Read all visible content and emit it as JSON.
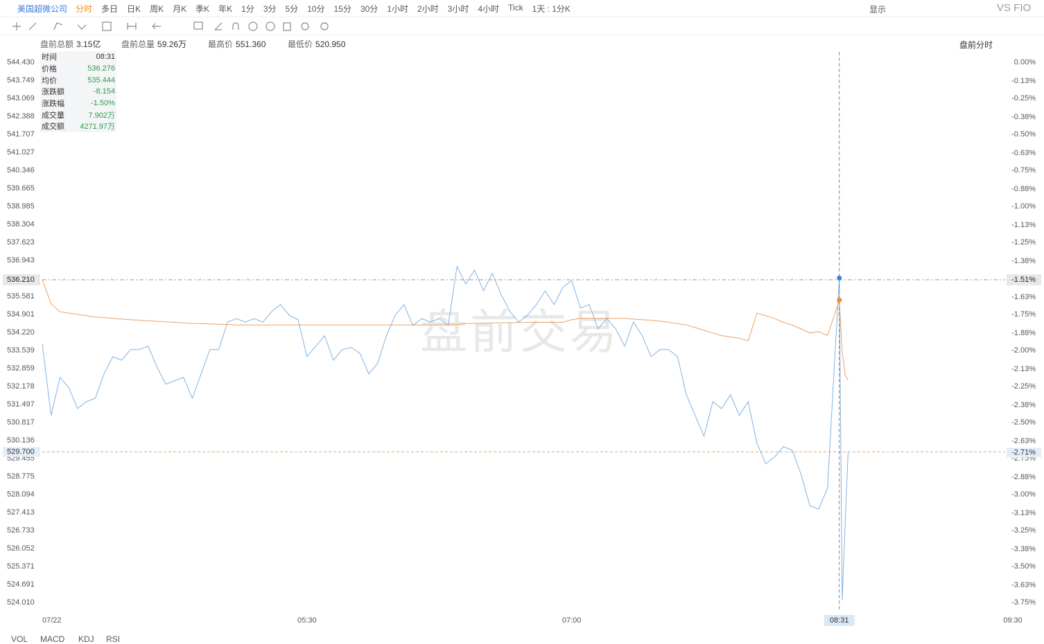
{
  "toolbar": {
    "symbol": "美国超微公司",
    "periods": [
      "分时",
      "多日",
      "日K",
      "周K",
      "月K",
      "季K",
      "年K",
      "1分",
      "3分",
      "5分",
      "10分",
      "15分",
      "30分",
      "1小时",
      "2小时",
      "3小时",
      "4小时",
      "Tick",
      "1天 : 1分K"
    ],
    "display": "显示",
    "compare": "VS FIO"
  },
  "stats": [
    {
      "label": "盘前总额",
      "value": "3.15亿"
    },
    {
      "label": "盘前总量",
      "value": "59.26万"
    },
    {
      "label": "最高价",
      "value": "551.360"
    },
    {
      "label": "最低价",
      "value": "520.950"
    }
  ],
  "mode": "盘前分时",
  "info": {
    "rows": [
      [
        "时间",
        "08:31"
      ],
      [
        "价格",
        "536.276"
      ],
      [
        "均价",
        "535.444"
      ],
      [
        "涨跌额",
        "-8.154"
      ],
      [
        "涨跌幅",
        "-1.50%"
      ],
      [
        "成交量",
        "7.902万"
      ],
      [
        "成交额",
        "4271.97万"
      ]
    ]
  },
  "watermark": "盘前交易",
  "indicators": [
    "VOL",
    "MACD",
    "KDJ",
    "RSI"
  ],
  "chart_data": {
    "type": "line",
    "x": [
      "04:00",
      "04:03",
      "04:06",
      "04:09",
      "04:12",
      "04:15",
      "04:18",
      "04:21",
      "04:24",
      "04:27",
      "04:30",
      "04:33",
      "04:36",
      "04:39",
      "04:42",
      "04:45",
      "04:48",
      "04:51",
      "04:54",
      "04:57",
      "05:00",
      "05:03",
      "05:06",
      "05:09",
      "05:12",
      "05:15",
      "05:18",
      "05:21",
      "05:24",
      "05:27",
      "05:30",
      "05:33",
      "05:36",
      "05:39",
      "05:42",
      "05:45",
      "05:48",
      "05:51",
      "05:54",
      "05:57",
      "06:00",
      "06:03",
      "06:06",
      "06:09",
      "06:12",
      "06:15",
      "06:18",
      "06:21",
      "06:24",
      "06:27",
      "06:30",
      "06:33",
      "06:36",
      "06:39",
      "06:42",
      "06:45",
      "06:48",
      "06:51",
      "06:54",
      "06:57",
      "07:00",
      "07:03",
      "07:06",
      "07:09",
      "07:12",
      "07:15",
      "07:18",
      "07:21",
      "07:24",
      "07:27",
      "07:30",
      "07:33",
      "07:36",
      "07:39",
      "07:42",
      "07:45",
      "07:48",
      "07:51",
      "07:54",
      "07:57",
      "08:00",
      "08:03",
      "08:06",
      "08:09",
      "08:12",
      "08:15",
      "08:18",
      "08:21",
      "08:24",
      "08:27",
      "08:31",
      "08:32",
      "08:33",
      "08:34"
    ],
    "series": [
      {
        "color": "#7fb2e5",
        "values": [
          533.77,
          531.08,
          532.52,
          532.13,
          531.34,
          531.6,
          531.73,
          532.65,
          533.3,
          533.17,
          533.57,
          533.57,
          533.7,
          532.91,
          532.26,
          532.39,
          532.52,
          531.73,
          532.65,
          533.57,
          533.57,
          534.61,
          534.74,
          534.61,
          534.74,
          534.61,
          535.01,
          535.27,
          534.87,
          534.69,
          533.3,
          533.7,
          534.09,
          533.17,
          533.57,
          533.65,
          533.43,
          532.65,
          533.04,
          534.09,
          534.87,
          535.27,
          534.48,
          534.74,
          534.61,
          534.74,
          534.48,
          536.71,
          536.05,
          536.57,
          535.79,
          536.45,
          535.66,
          535.01,
          534.61,
          534.87,
          535.27,
          535.79,
          535.27,
          535.92,
          536.18,
          535.14,
          535.27,
          534.35,
          534.74,
          534.35,
          533.7,
          534.61,
          534.09,
          533.3,
          533.57,
          533.57,
          533.3,
          531.86,
          531.08,
          530.29,
          531.6,
          531.34,
          531.86,
          531.08,
          531.6,
          530.03,
          529.25,
          529.51,
          529.9,
          529.77,
          528.85,
          527.67,
          527.54,
          528.33,
          536.276,
          524.1,
          527.0,
          529.7
        ]
      },
      {
        "color": "#f0a060",
        "values": [
          536.2,
          535.3,
          535.0,
          534.95,
          534.9,
          534.85,
          534.8,
          534.78,
          534.75,
          534.72,
          534.7,
          534.68,
          534.66,
          534.64,
          534.62,
          534.6,
          534.58,
          534.56,
          534.55,
          534.54,
          534.53,
          534.52,
          534.5,
          534.5,
          534.5,
          534.5,
          534.5,
          534.5,
          534.5,
          534.5,
          534.5,
          534.5,
          534.5,
          534.5,
          534.5,
          534.5,
          534.5,
          534.5,
          534.5,
          534.5,
          534.5,
          534.5,
          534.5,
          534.5,
          534.5,
          534.5,
          534.5,
          534.52,
          534.55,
          534.56,
          534.57,
          534.58,
          534.58,
          534.59,
          534.59,
          534.6,
          534.6,
          534.6,
          534.6,
          534.6,
          534.7,
          534.75,
          534.75,
          534.75,
          534.75,
          534.75,
          534.75,
          534.72,
          534.7,
          534.68,
          534.65,
          534.6,
          534.55,
          534.5,
          534.4,
          534.3,
          534.2,
          534.1,
          534.05,
          534.0,
          533.9,
          534.95,
          534.85,
          534.75,
          534.6,
          534.5,
          534.35,
          534.2,
          534.25,
          534.1,
          535.444,
          533.5,
          532.6,
          532.4
        ]
      }
    ],
    "xlim": [
      "04:00",
      "09:30"
    ],
    "xticks": [
      {
        "value": "04:00",
        "label": "07/22"
      },
      "05:30",
      "07:00",
      "09:30"
    ],
    "ylim": [
      524.01,
      544.43
    ],
    "yticks": [
      {
        "value": 544.43,
        "label": "544.430"
      },
      543.749,
      543.069,
      542.388,
      541.707,
      541.027,
      540.346,
      539.665,
      538.985,
      538.304,
      537.623,
      536.943,
      535.581,
      534.901,
      {
        "value": 534.22,
        "label": "534.220"
      },
      533.539,
      532.859,
      532.178,
      531.497,
      530.817,
      530.136,
      529.455,
      528.775,
      528.094,
      527.413,
      526.733,
      526.052,
      525.371,
      524.691,
      {
        "value": 524.01,
        "label": "524.010"
      }
    ],
    "y2lim": [
      -3.75,
      0
    ],
    "y2ticks": [
      {
        "value": 0,
        "label": "0.00%"
      },
      {
        "value": -0.13,
        "label": "-0.13%"
      },
      {
        "value": -0.25,
        "label": "-0.25%"
      },
      {
        "value": -0.38,
        "label": "-0.38%"
      },
      {
        "value": -0.5,
        "label": "-0.50%"
      },
      {
        "value": -0.63,
        "label": "-0.63%"
      },
      {
        "value": -0.75,
        "label": "-0.75%"
      },
      {
        "value": -0.88,
        "label": "-0.88%"
      },
      {
        "value": -1,
        "label": "-1.00%"
      },
      {
        "value": -1.13,
        "label": "-1.13%"
      },
      {
        "value": -1.25,
        "label": "-1.25%"
      },
      {
        "value": -1.38,
        "label": "-1.38%"
      },
      {
        "value": -1.63,
        "label": "-1.63%"
      },
      {
        "value": -1.75,
        "label": "-1.75%"
      },
      {
        "value": -1.88,
        "label": "-1.88%"
      },
      {
        "value": -2,
        "label": "-2.00%"
      },
      {
        "value": -2.13,
        "label": "-2.13%"
      },
      {
        "value": -2.25,
        "label": "-2.25%"
      },
      {
        "value": -2.38,
        "label": "-2.38%"
      },
      {
        "value": -2.5,
        "label": "-2.50%"
      },
      {
        "value": -2.63,
        "label": "-2.63%"
      },
      {
        "value": -2.75,
        "label": "-2.75%"
      },
      {
        "value": -2.88,
        "label": "-2.88%"
      },
      {
        "value": -3,
        "label": "-3.00%"
      },
      {
        "value": -3.13,
        "label": "-3.13%"
      },
      {
        "value": -3.25,
        "label": "-3.25%"
      },
      {
        "value": -3.38,
        "label": "-3.38%"
      },
      {
        "value": -3.5,
        "label": "-3.50%"
      },
      {
        "value": -3.63,
        "label": "-3.63%"
      },
      {
        "value": -3.75,
        "label": "-3.75%"
      }
    ],
    "ref_line": {
      "value": 529.7,
      "label": "529.700",
      "pct": {
        "value": -2.71,
        "label": "-2.71%"
      },
      "color": "#f0a060"
    },
    "crosshair": {
      "x": "08:31",
      "price": {
        "value": 536.21,
        "label": "536.210"
      },
      "pct": {
        "value": -1.51,
        "label": "-1.51%"
      }
    },
    "grid": false
  }
}
